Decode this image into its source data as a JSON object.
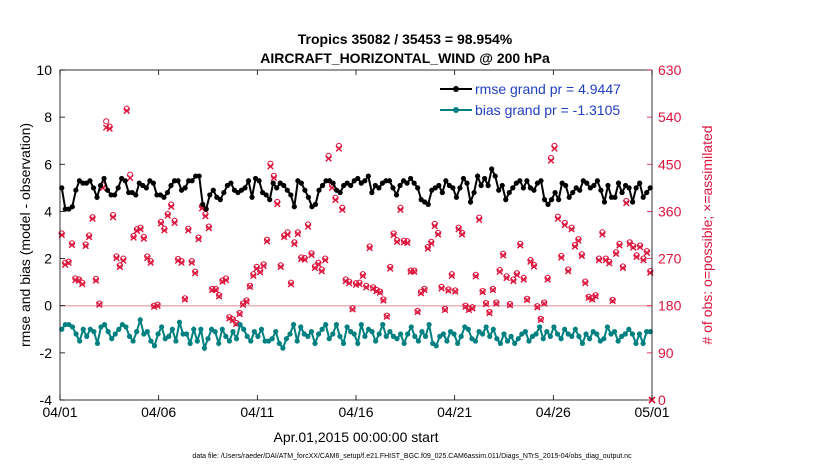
{
  "chart_data": {
    "type": "line",
    "title_line1": "Tropics 35082 / 35453 = 98.954%",
    "title_line2": "AIRCRAFT_HORIZONTAL_WIND @ 200 hPa",
    "xlabel": "Apr.01,2015 00:00:00 start",
    "ylabel_left": "rmse and bias (model - observation)",
    "ylabel_right": "# of obs: o=possible; ×=assimilated",
    "footer": "data file: /Users/raeder/DAI/ATM_forcXX/CAM6_setup/f.e21.FHIST_BGC.f09_025.CAM6assim.011/Diags_NTrS_2015-04/obs_diag_output.nc",
    "x_ticks": [
      "04/01",
      "04/06",
      "04/11",
      "04/16",
      "04/21",
      "04/26",
      "05/01"
    ],
    "x_range_days": [
      0,
      30
    ],
    "ylim_left": [
      -4,
      10
    ],
    "y_ticks_left": [
      -4,
      -2,
      0,
      2,
      4,
      6,
      8,
      10
    ],
    "ylim_right": [
      0,
      630
    ],
    "y_ticks_right": [
      0,
      90,
      180,
      270,
      360,
      450,
      540,
      630
    ],
    "zero_line": 0,
    "colors": {
      "rmse": "#000000",
      "bias": "#008080",
      "obs": "#dc143c",
      "legend_text": "#1f3fbf",
      "zero_line": "#e8b4b8"
    },
    "series": [
      {
        "name": "rmse grand pr = 4.9447",
        "axis": "left",
        "values": [
          5.0,
          4.1,
          4.1,
          4.2,
          4.9,
          5.3,
          5.2,
          5.2,
          5.3,
          5.0,
          4.6,
          5.1,
          5.4,
          4.9,
          4.7,
          4.7,
          5.0,
          5.4,
          5.3,
          4.8,
          4.8,
          4.7,
          5.2,
          5.1,
          5.0,
          5.3,
          5.2,
          4.7,
          4.7,
          4.6,
          4.8,
          5.1,
          5.3,
          5.3,
          4.9,
          5.0,
          5.3,
          5.3,
          5.5,
          5.5,
          4.3,
          4.1,
          4.7,
          4.9,
          4.6,
          4.5,
          4.8,
          5.1,
          5.2,
          4.9,
          4.8,
          4.9,
          5.0,
          5.3,
          4.6,
          5.4,
          5.3,
          4.8,
          4.7,
          4.5,
          5.2,
          5.0,
          5.2,
          5.1,
          4.9,
          4.7,
          4.2,
          5.3,
          5.2,
          4.9,
          4.6,
          4.2,
          4.3,
          4.9,
          5.1,
          5.3,
          5.3,
          5.2,
          4.9,
          4.8,
          5.1,
          5.2,
          5.1,
          5.3,
          5.4,
          5.2,
          5.3,
          5.5,
          4.8,
          5.1,
          5.0,
          5.2,
          5.3,
          5.3,
          5.0,
          4.7,
          5.1,
          5.3,
          5.2,
          5.4,
          5.2,
          5.0,
          4.5,
          4.4,
          4.3,
          4.9,
          5.0,
          5.1,
          4.8,
          5.3,
          5.1,
          5.0,
          4.6,
          5.0,
          5.4,
          5.2,
          4.4,
          4.8,
          5.5,
          5.1,
          5.4,
          5.1,
          5.8,
          5.5,
          4.9,
          5.1,
          4.5,
          4.8,
          5.0,
          5.2,
          5.3,
          5.0,
          5.3,
          5.0,
          4.9,
          5.2,
          5.3,
          4.5,
          4.3,
          4.5,
          4.8,
          4.5,
          5.2,
          5.1,
          4.6,
          4.8,
          5.0,
          4.9,
          5.3,
          5.2,
          5.0,
          5.1,
          5.3,
          4.9,
          4.4,
          5.1,
          4.6,
          4.6,
          5.2,
          4.8,
          5.1,
          5.0,
          4.4,
          5.0,
          5.2,
          4.6,
          4.8,
          5.0
        ]
      },
      {
        "name": "bias grand pr = -1.3105",
        "axis": "left",
        "values": [
          -1.0,
          -0.8,
          -0.8,
          -0.9,
          -1.2,
          -1.5,
          -1.0,
          -1.3,
          -1.0,
          -1.1,
          -1.6,
          -0.9,
          -0.8,
          -1.1,
          -1.4,
          -1.2,
          -1.0,
          -0.8,
          -0.9,
          -1.3,
          -1.5,
          -1.1,
          -0.6,
          -1.2,
          -1.1,
          -1.5,
          -1.7,
          -1.2,
          -0.9,
          -1.4,
          -1.3,
          -1.0,
          -1.5,
          -0.7,
          -1.2,
          -1.2,
          -1.6,
          -1.0,
          -1.5,
          -1.0,
          -1.8,
          -1.4,
          -1.0,
          -1.1,
          -1.6,
          -1.0,
          -1.3,
          -1.5,
          -1.1,
          -1.4,
          -0.8,
          -1.0,
          -1.3,
          -1.5,
          -1.1,
          -1.3,
          -1.0,
          -1.5,
          -1.5,
          -1.4,
          -1.1,
          -1.6,
          -1.8,
          -1.4,
          -1.2,
          -0.8,
          -1.5,
          -0.9,
          -1.2,
          -1.3,
          -1.1,
          -1.6,
          -1.2,
          -1.0,
          -0.8,
          -1.4,
          -1.2,
          -0.8,
          -1.3,
          -1.6,
          -0.9,
          -1.1,
          -1.2,
          -1.6,
          -0.8,
          -1.3,
          -1.0,
          -1.1,
          -1.5,
          -1.2,
          -0.8,
          -1.3,
          -1.1,
          -1.3,
          -1.4,
          -1.2,
          -1.6,
          -1.2,
          -0.9,
          -1.3,
          -1.5,
          -1.1,
          -1.3,
          -0.8,
          -1.6,
          -1.7,
          -1.3,
          -1.2,
          -1.5,
          -1.1,
          -1.2,
          -1.6,
          -1.3,
          -0.9,
          -1.0,
          -1.4,
          -1.5,
          -1.1,
          -1.2,
          -0.9,
          -1.3,
          -1.0,
          -1.4,
          -1.6,
          -1.2,
          -1.5,
          -1.3,
          -1.6,
          -1.4,
          -1.2,
          -1.1,
          -1.5,
          -1.3,
          -1.2,
          -0.9,
          -1.4,
          -1.1,
          -1.3,
          -0.9,
          -1.2,
          -1.4,
          -1.0,
          -1.2,
          -1.3,
          -1.0,
          -1.3,
          -1.6,
          -1.2,
          -1.4,
          -1.1,
          -1.2,
          -1.5,
          -1.4,
          -0.9,
          -1.2,
          -1.1,
          -1.5,
          -1.3,
          -1.2,
          -1.0,
          -1.2,
          -1.6,
          -1.2,
          -1.6,
          -1.1,
          -1.1
        ]
      },
      {
        "name": "# of obs possible",
        "axis": "right",
        "values": [
          318,
          262,
          264,
          299,
          232,
          230,
          224,
          297,
          314,
          349,
          231,
          184,
          410,
          532,
          522,
          353,
          274,
          257,
          270,
          556,
          430,
          313,
          326,
          329,
          311,
          274,
          265,
          180,
          182,
          340,
          327,
          355,
          373,
          342,
          269,
          265,
          194,
          327,
          265,
          245,
          310,
          370,
          355,
          331,
          212,
          212,
          200,
          228,
          232,
          158,
          154,
          147,
          166,
          184,
          190,
          218,
          240,
          254,
          247,
          259,
          306,
          451,
          428,
          378,
          257,
          314,
          320,
          224,
          301,
          320,
          272,
          271,
          335,
          280,
          255,
          262,
          249,
          270,
          466,
          410,
          386,
          485,
          367,
          230,
          226,
          175,
          223,
          224,
          240,
          218,
          293,
          215,
          210,
          207,
          192,
          161,
          254,
          318,
          305,
          367,
          304,
          303,
          247,
          247,
          170,
          206,
          212,
          292,
          302,
          336,
          319,
          216,
          174,
          211,
          240,
          209,
          329,
          319,
          180,
          174,
          177,
          239,
          348,
          208,
          185,
          168,
          212,
          186,
          248,
          279,
          236,
          183,
          230,
          242,
          298,
          233,
          193,
          267,
          258,
          179,
          155,
          186,
          233,
          462,
          485,
          350,
          275,
          338,
          249,
          329,
          296,
          307,
          278,
          226,
          197,
          194,
          200,
          270,
          320,
          270,
          264,
          191,
          282,
          298,
          255,
          380,
          301,
          294,
          276,
          295,
          270,
          284,
          246
        ]
      },
      {
        "name": "# of obs assimilated",
        "axis": "right",
        "values": [
          315,
          258,
          262,
          296,
          229,
          228,
          221,
          294,
          311,
          346,
          228,
          182,
          405,
          520,
          518,
          349,
          271,
          254,
          266,
          552,
          424,
          310,
          323,
          326,
          308,
          271,
          262,
          178,
          180,
          337,
          324,
          352,
          369,
          338,
          266,
          262,
          192,
          324,
          262,
          242,
          307,
          366,
          351,
          328,
          210,
          210,
          198,
          226,
          229,
          156,
          152,
          145,
          164,
          182,
          188,
          216,
          237,
          251,
          244,
          256,
          303,
          446,
          424,
          374,
          254,
          311,
          316,
          221,
          298,
          317,
          269,
          268,
          331,
          277,
          252,
          259,
          246,
          267,
          461,
          405,
          382,
          480,
          363,
          227,
          223,
          173,
          220,
          221,
          237,
          215,
          290,
          213,
          208,
          205,
          190,
          159,
          251,
          315,
          302,
          363,
          301,
          300,
          245,
          245,
          168,
          204,
          210,
          289,
          299,
          332,
          316,
          213,
          172,
          209,
          237,
          207,
          326,
          316,
          178,
          172,
          175,
          236,
          344,
          206,
          183,
          166,
          210,
          184,
          245,
          276,
          233,
          181,
          227,
          239,
          295,
          230,
          191,
          264,
          255,
          177,
          153,
          184,
          230,
          457,
          480,
          346,
          272,
          334,
          246,
          326,
          293,
          304,
          275,
          223,
          195,
          192,
          198,
          267,
          316,
          267,
          261,
          189,
          279,
          295,
          252,
          376,
          298,
          291,
          273,
          292,
          267,
          281,
          243
        ]
      }
    ]
  }
}
